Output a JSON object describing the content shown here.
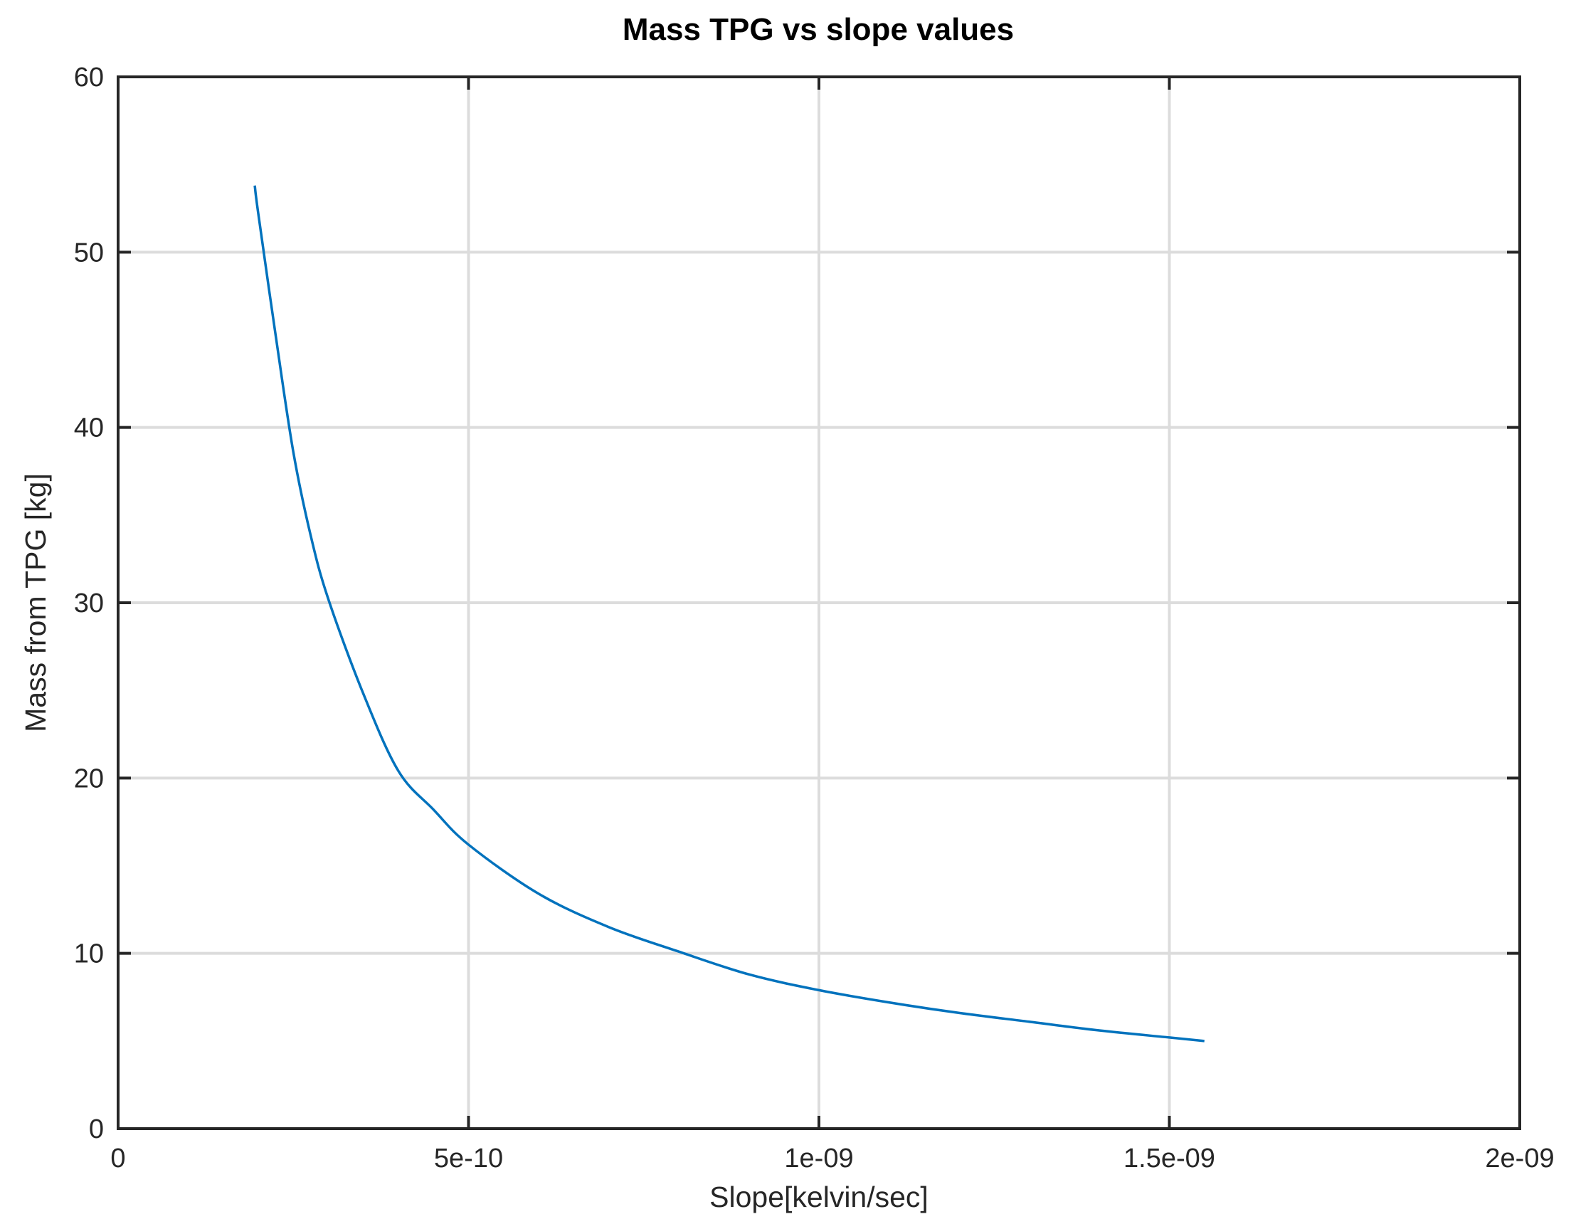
{
  "chart_data": {
    "type": "line",
    "title": "Mass TPG vs slope values",
    "xlabel": "Slope[kelvin/sec]",
    "ylabel": "Mass from TPG [kg]",
    "xlim": [
      0,
      2e-09
    ],
    "ylim": [
      0,
      60
    ],
    "xticks": [
      0,
      5e-10,
      1e-09,
      1.5e-09,
      2e-09
    ],
    "xtick_labels": [
      "0",
      "5e-10",
      "1e-09",
      "1.5e-09",
      "2e-09"
    ],
    "yticks": [
      0,
      10,
      20,
      30,
      40,
      50,
      60
    ],
    "ytick_labels": [
      "0",
      "10",
      "20",
      "30",
      "40",
      "50",
      "60"
    ],
    "grid": true,
    "series": [
      {
        "color": "#0072bd",
        "x": [
          1.95e-10,
          2e-10,
          2.25e-10,
          2.5e-10,
          2.75e-10,
          3e-10,
          3.5e-10,
          4e-10,
          4.5e-10,
          5e-10,
          6e-10,
          7e-10,
          8e-10,
          9e-10,
          1e-09,
          1.1e-09,
          1.2e-09,
          1.3e-09,
          1.4e-09,
          1.5e-09,
          1.55e-09
        ],
        "y": [
          53.8,
          52.2,
          45.2,
          38.6,
          33.8,
          30.2,
          24.8,
          20.4,
          18.2,
          16.2,
          13.4,
          11.5,
          10.1,
          8.8,
          7.9,
          7.2,
          6.6,
          6.1,
          5.6,
          5.2,
          5.0
        ]
      }
    ]
  }
}
